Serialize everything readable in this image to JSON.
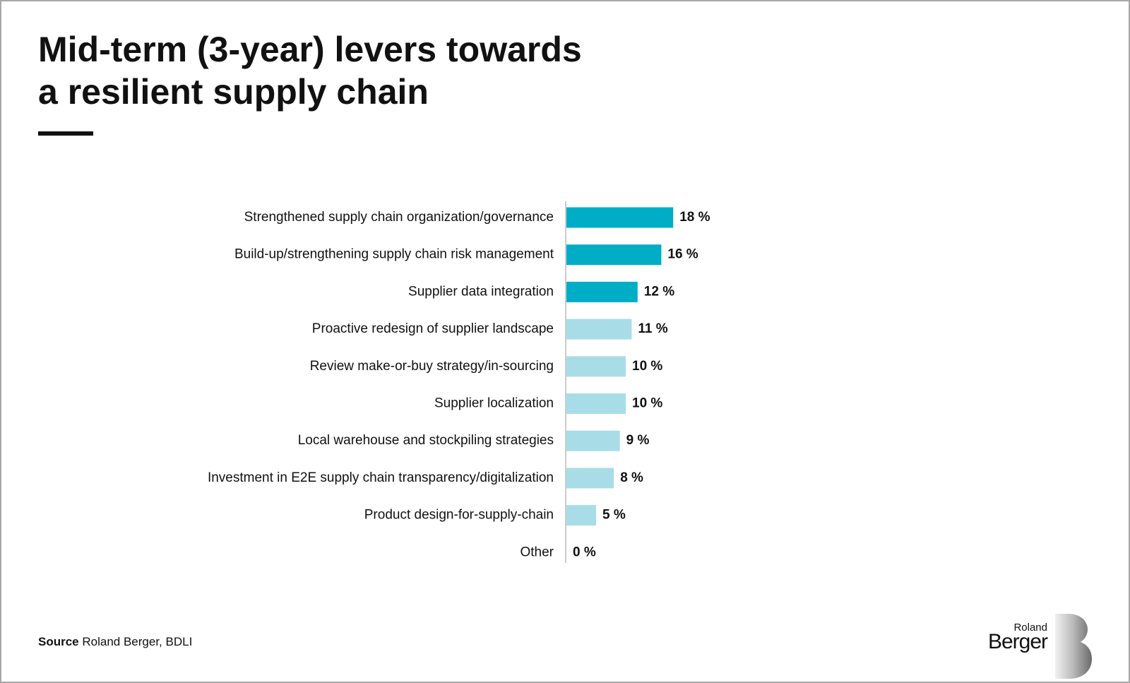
{
  "chart_data": {
    "type": "bar",
    "orientation": "horizontal",
    "title": [
      "Mid-term (3-year) levers towards",
      "a resilient supply chain"
    ],
    "categories": [
      "Strengthened supply chain organization/governance",
      "Build-up/strengthening supply chain risk management",
      "Supplier data integration",
      "Proactive redesign of supplier landscape",
      "Review make-or-buy strategy/in-sourcing",
      "Supplier localization",
      "Local warehouse and stockpiling strategies",
      "Investment in E2E supply chain transparency/digitalization",
      "Product design-for-supply-chain",
      "Other"
    ],
    "values": [
      18,
      16,
      12,
      11,
      10,
      10,
      9,
      8,
      5,
      0
    ],
    "value_labels": [
      "18 %",
      "16 %",
      "12 %",
      "11 %",
      "10 %",
      "10 %",
      "9 %",
      "8 %",
      "5 %",
      "0 %"
    ],
    "colors": [
      "#00adc6",
      "#00adc6",
      "#00adc6",
      "#a8dde8",
      "#a8dde8",
      "#a8dde8",
      "#a8dde8",
      "#a8dde8",
      "#a8dde8",
      "#a8dde8"
    ]
  },
  "footer": {
    "source_label": "Source",
    "source_text": "Roland Berger, BDLI"
  },
  "logo": {
    "line1": "Roland",
    "line2": "Berger"
  }
}
